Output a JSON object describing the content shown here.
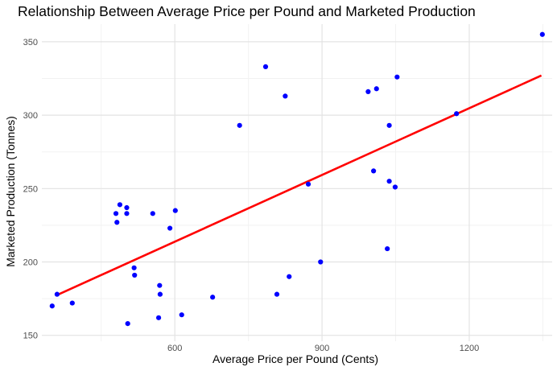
{
  "chart_data": {
    "type": "scatter",
    "title": "Relationship Between Average Price per Pound and Marketed Production",
    "xlabel": "Average Price per Pound (Cents)",
    "ylabel": "Marketed Production (Tonnes)",
    "xlim": [
      329,
      1369
    ],
    "ylim": [
      146,
      362
    ],
    "x_ticks": [
      600,
      900,
      1200
    ],
    "y_ticks": [
      150,
      200,
      250,
      300,
      350
    ],
    "grid": true,
    "legend": "none",
    "point_color": "#0000ff",
    "line_color": "#ff0000",
    "points": [
      {
        "x": 350,
        "y": 170
      },
      {
        "x": 360,
        "y": 178
      },
      {
        "x": 391,
        "y": 172
      },
      {
        "x": 480,
        "y": 233
      },
      {
        "x": 482,
        "y": 227
      },
      {
        "x": 488,
        "y": 239
      },
      {
        "x": 502,
        "y": 237
      },
      {
        "x": 502,
        "y": 233
      },
      {
        "x": 504,
        "y": 158
      },
      {
        "x": 517,
        "y": 196
      },
      {
        "x": 518,
        "y": 191
      },
      {
        "x": 555,
        "y": 233
      },
      {
        "x": 567,
        "y": 162
      },
      {
        "x": 569,
        "y": 184
      },
      {
        "x": 570,
        "y": 178
      },
      {
        "x": 590,
        "y": 223
      },
      {
        "x": 601,
        "y": 235
      },
      {
        "x": 614,
        "y": 164
      },
      {
        "x": 677,
        "y": 176
      },
      {
        "x": 732,
        "y": 293
      },
      {
        "x": 785,
        "y": 333
      },
      {
        "x": 808,
        "y": 178
      },
      {
        "x": 825,
        "y": 313
      },
      {
        "x": 833,
        "y": 190
      },
      {
        "x": 872,
        "y": 253
      },
      {
        "x": 897,
        "y": 200
      },
      {
        "x": 994,
        "y": 316
      },
      {
        "x": 1005,
        "y": 262
      },
      {
        "x": 1011,
        "y": 318
      },
      {
        "x": 1033,
        "y": 209
      },
      {
        "x": 1037,
        "y": 293
      },
      {
        "x": 1037,
        "y": 255
      },
      {
        "x": 1049,
        "y": 251
      },
      {
        "x": 1053,
        "y": 326
      },
      {
        "x": 1174,
        "y": 301
      },
      {
        "x": 1349,
        "y": 355
      }
    ],
    "trend_line": {
      "x": [
        357,
        1347
      ],
      "y": [
        177,
        327
      ]
    }
  }
}
